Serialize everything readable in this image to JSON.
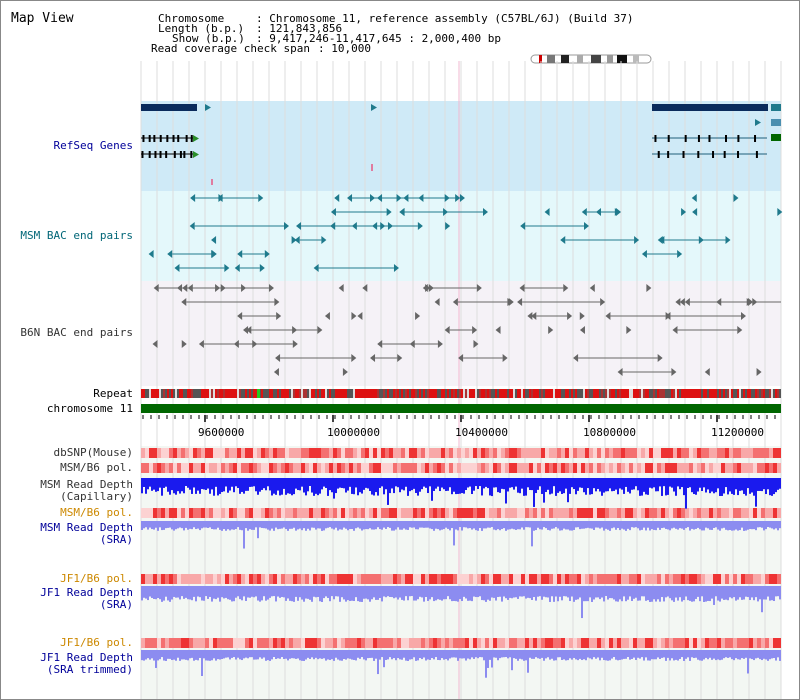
{
  "view": {
    "title": "Map View",
    "info": {
      "chromosome_key": "Chromosome",
      "chromosome_val": ": Chromosome 11, reference assembly (C57BL/6J) (Build 37)",
      "length_key": "Length (b.p.)",
      "length_val": ": 121,843,856",
      "show_key": "Show (b.p.)",
      "show_val": ": 9,417,246-11,417,645 : 2,000,400 bp",
      "coverage_key": "Read coverage check span",
      "coverage_val": ": 10,000"
    }
  },
  "tracks": {
    "refseq": "RefSeq Genes",
    "msm_bac": "MSM BAC end pairs",
    "b6n_bac": "B6N BAC end pairs",
    "repeat": "Repeat",
    "chromosome": "chromosome 11",
    "dbsnp": "dbSNP(Mouse)",
    "msm_b6_pol_1": "MSM/B6 pol.",
    "msm_depth_cap_1": "MSM Read Depth",
    "msm_depth_cap_2": "(Capillary)",
    "msm_b6_pol_2": "MSM/B6 pol.",
    "msm_depth_sra_1": "MSM Read Depth",
    "msm_depth_sra_2": "(SRA)",
    "jf1_b6_pol_1": "JF1/B6 pol.",
    "jf1_depth_sra_1": "JF1 Read Depth",
    "jf1_depth_sra_2": "(SRA)",
    "jf1_b6_pol_2": "JF1/B6 pol.",
    "jf1_depth_trim_1": "JF1 Read Depth",
    "jf1_depth_trim_2": "(SRA trimmed)"
  },
  "axis": {
    "ticks": [
      "9600000",
      "10000000",
      "10400000",
      "10800000",
      "11200000"
    ]
  },
  "colors": {
    "refseq_bg": "#cfeaf7",
    "msm_bac_bg": "#e4f8fb",
    "b6n_bac_bg": "#f5f2f7",
    "lower_bg": "#f3f7f3",
    "label_blue": "#000099",
    "label_teal": "#006677",
    "label_orange": "#cc8800",
    "gene_navy": "#0a2b5c",
    "bac_teal": "#1f7a8c",
    "bac_gray": "#666666",
    "chrom_green": "#006600",
    "depth_blue": "#1a1aee",
    "depth_light": "#8c8cf0"
  }
}
